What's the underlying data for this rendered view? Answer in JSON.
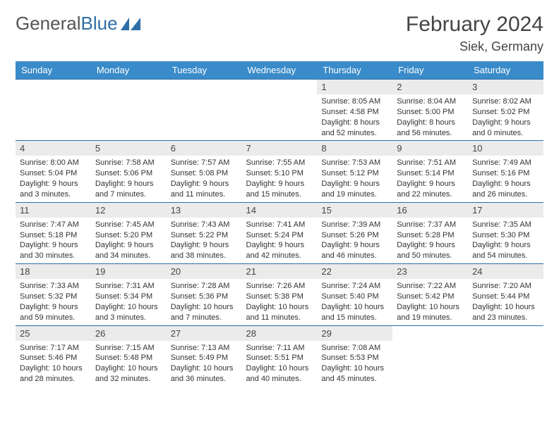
{
  "brand": {
    "name_part1": "General",
    "name_part2": "Blue"
  },
  "title": {
    "month": "February 2024",
    "location": "Siek, Germany"
  },
  "colors": {
    "header_bg": "#3a8bc9",
    "header_text": "#ffffff",
    "daynum_bg": "#ebebeb",
    "cell_border": "#2f6fa7",
    "text": "#333333",
    "logo_blue": "#2f6fa7"
  },
  "weekdays": [
    "Sunday",
    "Monday",
    "Tuesday",
    "Wednesday",
    "Thursday",
    "Friday",
    "Saturday"
  ],
  "weeks": [
    [
      {
        "empty": true
      },
      {
        "empty": true
      },
      {
        "empty": true
      },
      {
        "empty": true
      },
      {
        "num": "1",
        "sunrise": "Sunrise: 8:05 AM",
        "sunset": "Sunset: 4:58 PM",
        "daylight": "Daylight: 8 hours and 52 minutes."
      },
      {
        "num": "2",
        "sunrise": "Sunrise: 8:04 AM",
        "sunset": "Sunset: 5:00 PM",
        "daylight": "Daylight: 8 hours and 56 minutes."
      },
      {
        "num": "3",
        "sunrise": "Sunrise: 8:02 AM",
        "sunset": "Sunset: 5:02 PM",
        "daylight": "Daylight: 9 hours and 0 minutes."
      }
    ],
    [
      {
        "num": "4",
        "sunrise": "Sunrise: 8:00 AM",
        "sunset": "Sunset: 5:04 PM",
        "daylight": "Daylight: 9 hours and 3 minutes."
      },
      {
        "num": "5",
        "sunrise": "Sunrise: 7:58 AM",
        "sunset": "Sunset: 5:06 PM",
        "daylight": "Daylight: 9 hours and 7 minutes."
      },
      {
        "num": "6",
        "sunrise": "Sunrise: 7:57 AM",
        "sunset": "Sunset: 5:08 PM",
        "daylight": "Daylight: 9 hours and 11 minutes."
      },
      {
        "num": "7",
        "sunrise": "Sunrise: 7:55 AM",
        "sunset": "Sunset: 5:10 PM",
        "daylight": "Daylight: 9 hours and 15 minutes."
      },
      {
        "num": "8",
        "sunrise": "Sunrise: 7:53 AM",
        "sunset": "Sunset: 5:12 PM",
        "daylight": "Daylight: 9 hours and 19 minutes."
      },
      {
        "num": "9",
        "sunrise": "Sunrise: 7:51 AM",
        "sunset": "Sunset: 5:14 PM",
        "daylight": "Daylight: 9 hours and 22 minutes."
      },
      {
        "num": "10",
        "sunrise": "Sunrise: 7:49 AM",
        "sunset": "Sunset: 5:16 PM",
        "daylight": "Daylight: 9 hours and 26 minutes."
      }
    ],
    [
      {
        "num": "11",
        "sunrise": "Sunrise: 7:47 AM",
        "sunset": "Sunset: 5:18 PM",
        "daylight": "Daylight: 9 hours and 30 minutes."
      },
      {
        "num": "12",
        "sunrise": "Sunrise: 7:45 AM",
        "sunset": "Sunset: 5:20 PM",
        "daylight": "Daylight: 9 hours and 34 minutes."
      },
      {
        "num": "13",
        "sunrise": "Sunrise: 7:43 AM",
        "sunset": "Sunset: 5:22 PM",
        "daylight": "Daylight: 9 hours and 38 minutes."
      },
      {
        "num": "14",
        "sunrise": "Sunrise: 7:41 AM",
        "sunset": "Sunset: 5:24 PM",
        "daylight": "Daylight: 9 hours and 42 minutes."
      },
      {
        "num": "15",
        "sunrise": "Sunrise: 7:39 AM",
        "sunset": "Sunset: 5:26 PM",
        "daylight": "Daylight: 9 hours and 46 minutes."
      },
      {
        "num": "16",
        "sunrise": "Sunrise: 7:37 AM",
        "sunset": "Sunset: 5:28 PM",
        "daylight": "Daylight: 9 hours and 50 minutes."
      },
      {
        "num": "17",
        "sunrise": "Sunrise: 7:35 AM",
        "sunset": "Sunset: 5:30 PM",
        "daylight": "Daylight: 9 hours and 54 minutes."
      }
    ],
    [
      {
        "num": "18",
        "sunrise": "Sunrise: 7:33 AM",
        "sunset": "Sunset: 5:32 PM",
        "daylight": "Daylight: 9 hours and 59 minutes."
      },
      {
        "num": "19",
        "sunrise": "Sunrise: 7:31 AM",
        "sunset": "Sunset: 5:34 PM",
        "daylight": "Daylight: 10 hours and 3 minutes."
      },
      {
        "num": "20",
        "sunrise": "Sunrise: 7:28 AM",
        "sunset": "Sunset: 5:36 PM",
        "daylight": "Daylight: 10 hours and 7 minutes."
      },
      {
        "num": "21",
        "sunrise": "Sunrise: 7:26 AM",
        "sunset": "Sunset: 5:38 PM",
        "daylight": "Daylight: 10 hours and 11 minutes."
      },
      {
        "num": "22",
        "sunrise": "Sunrise: 7:24 AM",
        "sunset": "Sunset: 5:40 PM",
        "daylight": "Daylight: 10 hours and 15 minutes."
      },
      {
        "num": "23",
        "sunrise": "Sunrise: 7:22 AM",
        "sunset": "Sunset: 5:42 PM",
        "daylight": "Daylight: 10 hours and 19 minutes."
      },
      {
        "num": "24",
        "sunrise": "Sunrise: 7:20 AM",
        "sunset": "Sunset: 5:44 PM",
        "daylight": "Daylight: 10 hours and 23 minutes."
      }
    ],
    [
      {
        "num": "25",
        "sunrise": "Sunrise: 7:17 AM",
        "sunset": "Sunset: 5:46 PM",
        "daylight": "Daylight: 10 hours and 28 minutes."
      },
      {
        "num": "26",
        "sunrise": "Sunrise: 7:15 AM",
        "sunset": "Sunset: 5:48 PM",
        "daylight": "Daylight: 10 hours and 32 minutes."
      },
      {
        "num": "27",
        "sunrise": "Sunrise: 7:13 AM",
        "sunset": "Sunset: 5:49 PM",
        "daylight": "Daylight: 10 hours and 36 minutes."
      },
      {
        "num": "28",
        "sunrise": "Sunrise: 7:11 AM",
        "sunset": "Sunset: 5:51 PM",
        "daylight": "Daylight: 10 hours and 40 minutes."
      },
      {
        "num": "29",
        "sunrise": "Sunrise: 7:08 AM",
        "sunset": "Sunset: 5:53 PM",
        "daylight": "Daylight: 10 hours and 45 minutes."
      },
      {
        "empty": true
      },
      {
        "empty": true
      }
    ]
  ]
}
